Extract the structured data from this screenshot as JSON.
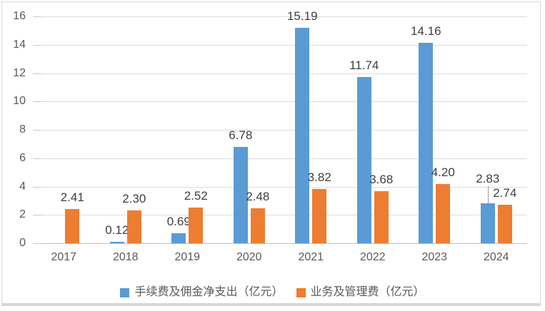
{
  "chart": {
    "background": "#FFFFFF",
    "frame_border_color": "#D9D9D9",
    "grid_color": "#DCDCDC",
    "zero_axis_color": "#BFBFBF",
    "tick_color": "#C9C9C9",
    "axis_text_color": "#595959",
    "data_label_color": "#3E3E3E",
    "leader_line_color": "#9E9E9E"
  },
  "chart_data": {
    "type": "bar",
    "title": "",
    "categories": [
      "2017",
      "2018",
      "2019",
      "2020",
      "2021",
      "2022",
      "2023",
      "2024"
    ],
    "series": [
      {
        "name": "手续费及佣金净支出（亿元）",
        "color": "#5B9BD5",
        "values": [
          null,
          0.12,
          0.69,
          6.78,
          15.19,
          11.74,
          14.16,
          2.83
        ],
        "labels": [
          "",
          "0.12",
          "0.69",
          "6.78",
          "15.19",
          "11.74",
          "14.16",
          "2.83"
        ],
        "raised_label_indexes": [
          7
        ]
      },
      {
        "name": "业务及管理费（亿元）",
        "color": "#ED7D31",
        "values": [
          2.41,
          2.3,
          2.52,
          2.48,
          3.82,
          3.68,
          4.2,
          2.74
        ],
        "labels": [
          "2.41",
          "2.30",
          "2.52",
          "2.48",
          "3.82",
          "3.68",
          "4.20",
          "2.74"
        ],
        "raised_label_indexes": []
      }
    ],
    "ylim": [
      0,
      16
    ],
    "ytick_step": 2,
    "ytick_labels": [
      "0",
      "2",
      "4",
      "6",
      "8",
      "10",
      "12",
      "14",
      "16"
    ],
    "grid": true,
    "legend_position": "bottom"
  }
}
